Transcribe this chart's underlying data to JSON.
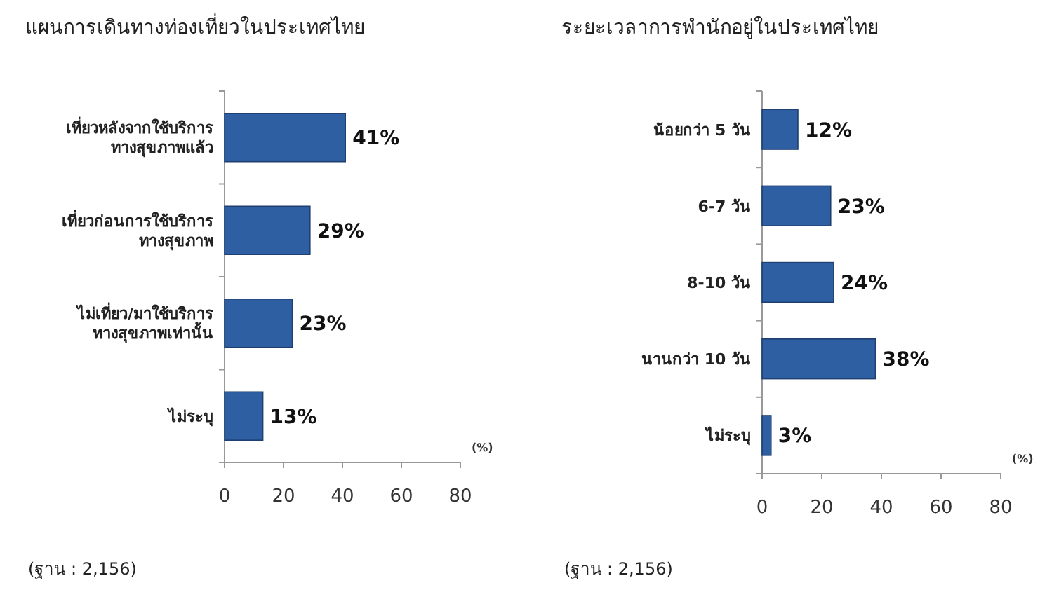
{
  "chart_data": [
    {
      "type": "bar",
      "orientation": "horizontal",
      "title": "แผนการเดินทางท่องเที่ยวในประเทศไทย",
      "categories": [
        "เที่ยวหลังจากใช้บริการ\nทางสุขภาพแล้ว",
        "เที่ยวก่อนการใช้บริการ\nทางสุขภาพ",
        "ไม่เที่ยว/มาใช้บริการ\nทางสุขภาพเท่านั้น",
        "ไม่ระบุ"
      ],
      "values": [
        41,
        29,
        23,
        13
      ],
      "value_labels": [
        "41%",
        "29%",
        "23%",
        "13%"
      ],
      "color": "#2e5fa3",
      "xlim": [
        0,
        80
      ],
      "xticks": [
        0,
        20,
        40,
        60,
        80
      ],
      "xlabel": "(%)",
      "grid": false,
      "annotations": [
        "(ฐาน : 2,156)"
      ]
    },
    {
      "type": "bar",
      "orientation": "horizontal",
      "title": "ระยะเวลาการพำนักอยู่ในประเทศไทย",
      "categories": [
        "น้อยกว่า 5 วัน",
        "6-7 วัน",
        "8-10 วัน",
        "นานกว่า 10 วัน",
        "ไม่ระบุ"
      ],
      "values": [
        12,
        23,
        24,
        38,
        3
      ],
      "value_labels": [
        "12%",
        "23%",
        "24%",
        "38%",
        "3%"
      ],
      "color": "#2e5fa3",
      "xlim": [
        0,
        80
      ],
      "xticks": [
        0,
        20,
        40,
        60,
        80
      ],
      "xlabel": "(%)",
      "grid": false,
      "annotations": [
        "(ฐาน : 2,156)"
      ]
    }
  ]
}
